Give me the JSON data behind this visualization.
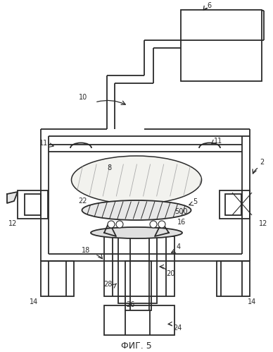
{
  "title": "ФИГ. 5",
  "bg_color": "#ffffff",
  "lc": "#2a2a2a",
  "lw": 1.3,
  "thin": 0.8,
  "fs": 7.0
}
